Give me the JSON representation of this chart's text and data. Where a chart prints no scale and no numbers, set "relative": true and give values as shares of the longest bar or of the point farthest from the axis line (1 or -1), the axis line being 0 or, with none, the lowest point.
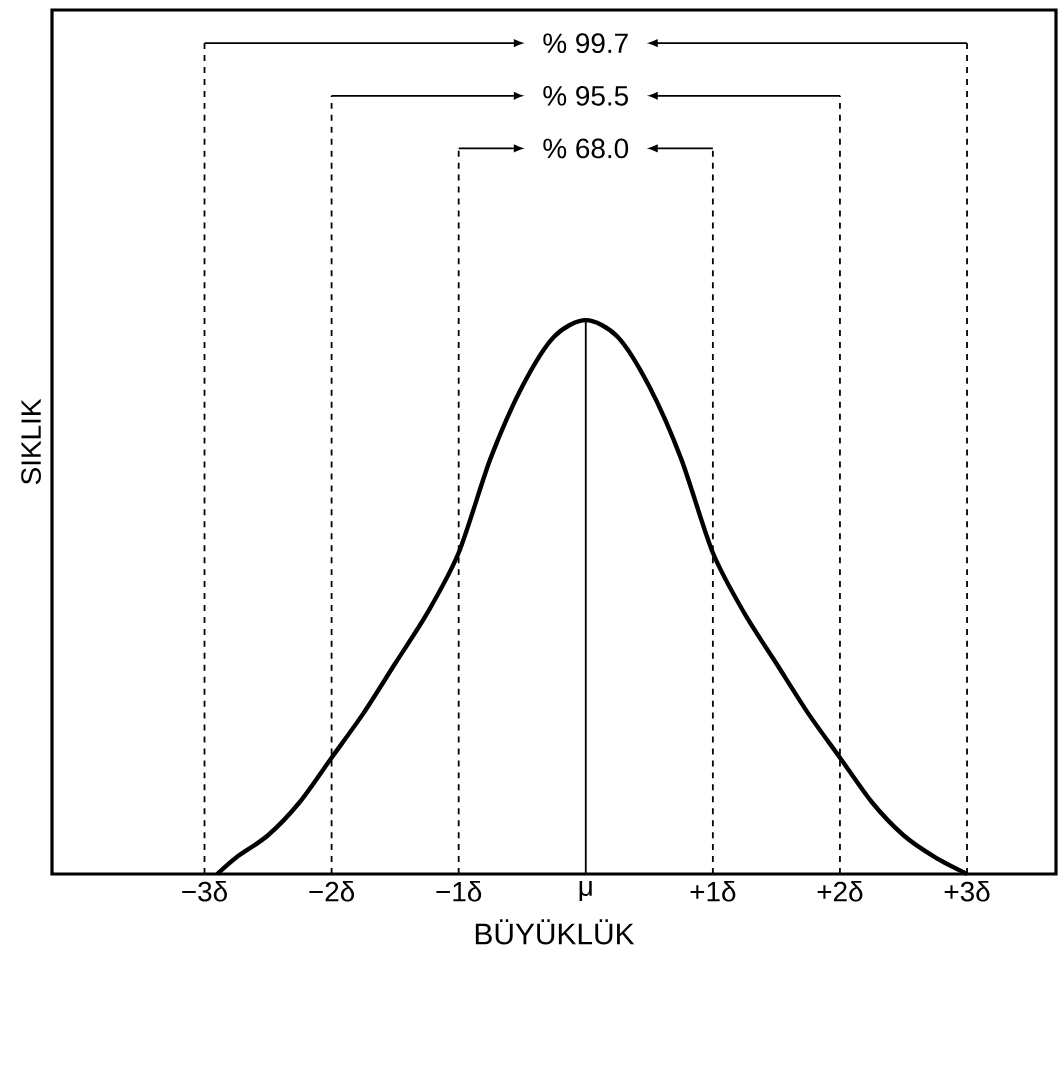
{
  "chart_data": {
    "type": "line",
    "relative": true,
    "xlabel": "BÜYÜKLÜK",
    "ylabel": "SIKLIK",
    "x": [
      -2.9,
      -2.75,
      -2.5,
      -2.25,
      -2,
      -1.75,
      -1.5,
      -1.25,
      -1,
      -0.75,
      -0.5,
      -0.25,
      0,
      0.25,
      0.5,
      0.75,
      1,
      1.25,
      1.5,
      1.75,
      2,
      2.25,
      2.5,
      2.75,
      3
    ],
    "values": [
      0,
      0.03,
      0.07,
      0.13,
      0.21,
      0.29,
      0.38,
      0.47,
      0.58,
      0.75,
      0.88,
      0.97,
      1,
      0.97,
      0.88,
      0.75,
      0.58,
      0.47,
      0.38,
      0.29,
      0.21,
      0.13,
      0.07,
      0.03,
      0
    ],
    "color": "#000000",
    "marker": "none",
    "line_style": "solid",
    "xlim": [
      -4.2,
      3.7
    ],
    "xticks": [
      {
        "value": -3,
        "label": "−3δ"
      },
      {
        "value": -2,
        "label": "−2δ"
      },
      {
        "value": -1,
        "label": "−1δ"
      },
      {
        "value": 0,
        "label": "μ"
      },
      {
        "value": 1,
        "label": "+1δ"
      },
      {
        "value": 2,
        "label": "+2δ"
      },
      {
        "value": 3,
        "label": "+3δ"
      }
    ],
    "ref_lines": [
      {
        "axis": "x",
        "value": -3,
        "line_style": "dashed"
      },
      {
        "axis": "x",
        "value": 3,
        "line_style": "dashed"
      },
      {
        "axis": "x",
        "value": -2,
        "line_style": "dashed"
      },
      {
        "axis": "x",
        "value": 2,
        "line_style": "dashed"
      },
      {
        "axis": "x",
        "value": -1,
        "line_style": "dashed"
      },
      {
        "axis": "x",
        "value": 1,
        "line_style": "dashed"
      },
      {
        "axis": "x",
        "value": 0,
        "line_style": "solid"
      }
    ],
    "annotations": [
      "% 99.7",
      "% 95.5",
      "% 68.0"
    ]
  }
}
